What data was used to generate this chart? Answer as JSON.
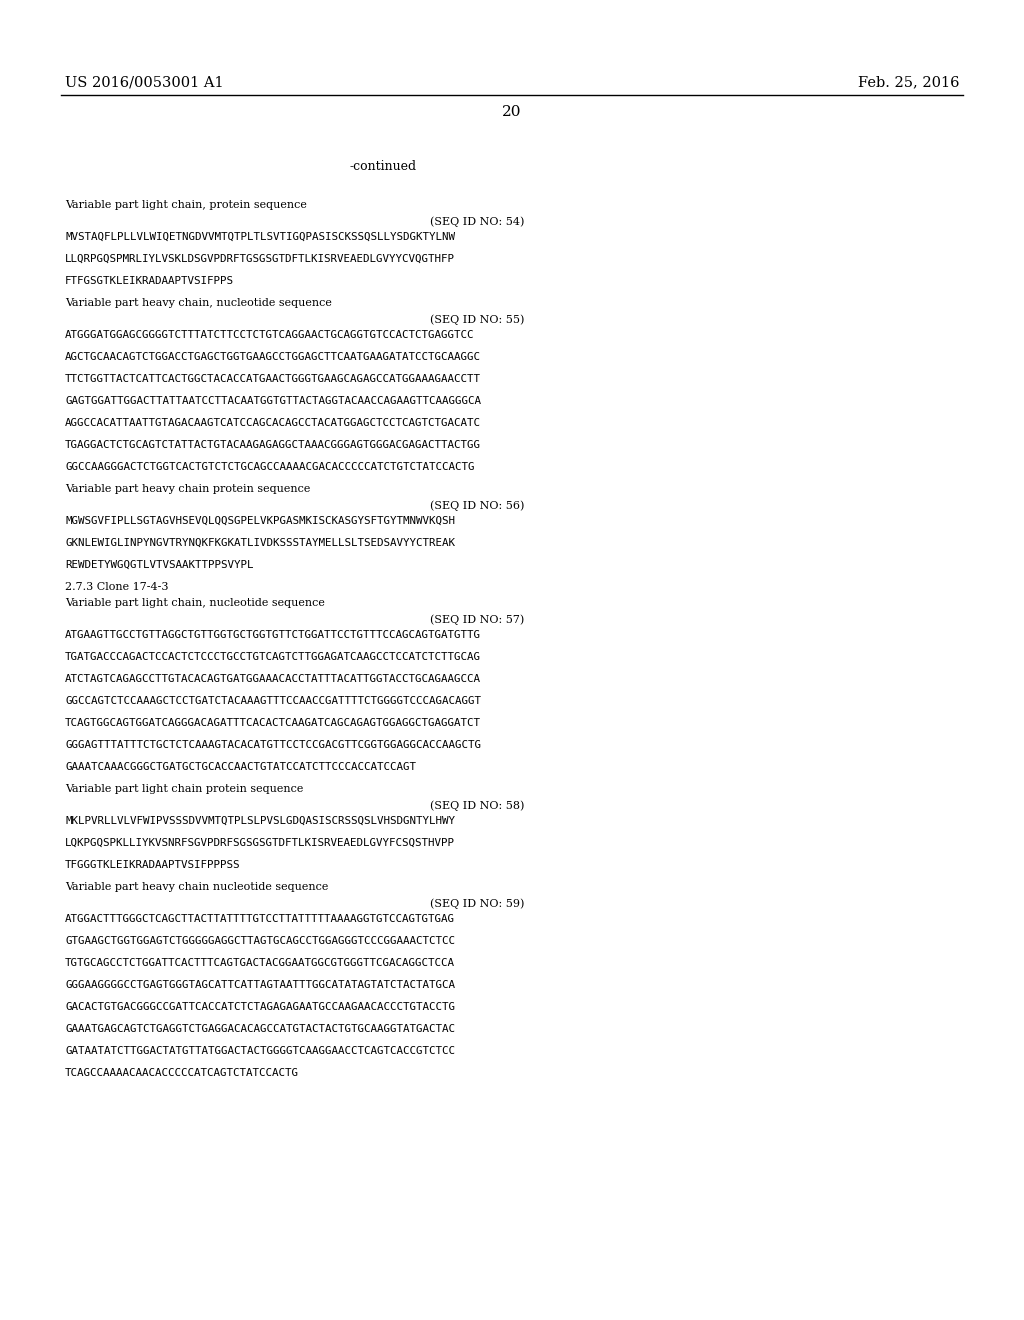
{
  "background_color": "#ffffff",
  "header_left": "US 2016/0053001 A1",
  "header_right": "Feb. 25, 2016",
  "page_number": "20",
  "continued": "-continued",
  "content_lines": [
    {
      "text": "Variable part light chain, protein sequence",
      "style": "normal"
    },
    {
      "text": "(SEQ ID NO: 54)",
      "style": "seqid"
    },
    {
      "text": "MVSTAQFLPLLVLWIQETNGDVVMTQTPLTLSVTIGQPASISCKSSQSLLYSDGKTYLNW",
      "style": "mono"
    },
    {
      "text": "",
      "style": "blank"
    },
    {
      "text": "LLQRPGQSPMRLIYLVSKLDSGVPDRFTGSGSGTDFTLKISRVEAEDLGVYYCVQGTHFP",
      "style": "mono"
    },
    {
      "text": "",
      "style": "blank"
    },
    {
      "text": "FTFGSGTKLЕIKRADAAPTVSIFPPS",
      "style": "mono"
    },
    {
      "text": "",
      "style": "blank"
    },
    {
      "text": "Variable part heavy chain, nucleotide sequence",
      "style": "normal"
    },
    {
      "text": "(SEQ ID NO: 55)",
      "style": "seqid"
    },
    {
      "text": "ATGGGATGGAGCGGGGTCTTTАТCTTCCTCTGTCAGGAACTGCAGGTGTCCACTCTGAGGTCC",
      "style": "mono"
    },
    {
      "text": "",
      "style": "blank"
    },
    {
      "text": "AGCTGCAACAGTCTGGACCTGAGCTGGTGAAGCCTGGAGCTTCAATGAAGATATCCTGCAAGGC",
      "style": "mono"
    },
    {
      "text": "",
      "style": "blank"
    },
    {
      "text": "TTCTGGTTACTCATTCACTGGCTACACCATGAACTGGGTGAAGCAGAGCCATGGAAAGAACCTT",
      "style": "mono"
    },
    {
      "text": "",
      "style": "blank"
    },
    {
      "text": "GAGTGGATTGGACTTATTAATCCTTACAATGGTGTTACTAGGTACAACCAGAAGTTCAAGGGCA",
      "style": "mono"
    },
    {
      "text": "",
      "style": "blank"
    },
    {
      "text": "AGGCCACATTAATTGTAGACAAGTCATCCAGCACAGCCTACATGGAGCTCCTCAGTCTGACATC",
      "style": "mono"
    },
    {
      "text": "",
      "style": "blank"
    },
    {
      "text": "TGAGGACTCTGCAGTCTATTACTGTACAAGAGAGGCTAAACGGGAGTGGGACGAGACTTACTGG",
      "style": "mono"
    },
    {
      "text": "",
      "style": "blank"
    },
    {
      "text": "GGCCAAGGGACTCTGGTCACTGTCTCTGCAGCCAAAACGACACCCCCATCTGTCTATCCACTG",
      "style": "mono"
    },
    {
      "text": "",
      "style": "blank"
    },
    {
      "text": "Variable part heavy chain protein sequence",
      "style": "normal"
    },
    {
      "text": "(SEQ ID NO: 56)",
      "style": "seqid"
    },
    {
      "text": "MGWSGVFIPLLSGTAGVHSEVQLQQSGPELVKPGASMKISCKASGYSFTGYTMNWVKQSH",
      "style": "mono"
    },
    {
      "text": "",
      "style": "blank"
    },
    {
      "text": "GKNLEWIGLINPYNGVTRYNQKFKGKATLIVDKSSSTAYMELLSLTSEDSAVYYCTREAK",
      "style": "mono"
    },
    {
      "text": "",
      "style": "blank"
    },
    {
      "text": "REWDETYWGQGTLVTVSAAKTTPPSVYPL",
      "style": "mono"
    },
    {
      "text": "",
      "style": "blank"
    },
    {
      "text": "2.7.3 Clone 17-4-3",
      "style": "normal"
    },
    {
      "text": "Variable part light chain, nucleotide sequence",
      "style": "normal"
    },
    {
      "text": "(SEQ ID NO: 57)",
      "style": "seqid"
    },
    {
      "text": "ATGAAGTTGCCTGTTAGGCTGTTGGTGCTGGTGTTCTGGATTCCTGTTTCCAGCAGTGATGTTG",
      "style": "mono"
    },
    {
      "text": "",
      "style": "blank"
    },
    {
      "text": "TGATGACCCAGACTCCACTCTCCCTGCCTGTCAGTCTTGGAGATCAAGCCTCCATCTCTTGCAG",
      "style": "mono"
    },
    {
      "text": "",
      "style": "blank"
    },
    {
      "text": "ATCTAGTCAGAGCCTTGTACACAGTGATGGAAACACCTATTTACATTGGTACCTGCAGAAGCCA",
      "style": "mono"
    },
    {
      "text": "",
      "style": "blank"
    },
    {
      "text": "GGCCAGTCTCCAAAGCTCCTGATCTACAAAGTTTCCAACCGATTTTCTGGGGTCCCAGACAGGT",
      "style": "mono"
    },
    {
      "text": "",
      "style": "blank"
    },
    {
      "text": "TCAGTGGCAGTGGATCAGGGACAGATTTCACACTCAAGATCAGCAGAGTGGAGGCTGAGGATCT",
      "style": "mono"
    },
    {
      "text": "",
      "style": "blank"
    },
    {
      "text": "GGGAGTTTАТТТCTGCTCTCAAAGTACACATGTTCCTCCGACGTTCGGTGGAGGCACCAAGCTG",
      "style": "mono"
    },
    {
      "text": "",
      "style": "blank"
    },
    {
      "text": "GAAATCAAACGGGCTGATGCTGCACCAACTGTATCCATCTTCCCACCATCCAGT",
      "style": "mono"
    },
    {
      "text": "",
      "style": "blank"
    },
    {
      "text": "Variable part light chain protein sequence",
      "style": "normal"
    },
    {
      "text": "(SEQ ID NO: 58)",
      "style": "seqid"
    },
    {
      "text": "MKLPVRLLVLVFWIPVSSSDVVMTQTPLSLPVSLGDQASISCRSSQSLVHSDGNTYLHWY",
      "style": "mono"
    },
    {
      "text": "",
      "style": "blank"
    },
    {
      "text": "LQKPGQSPKLLIYKVSNRFSGVPDRFSGSGSGTDFTLKISRVEAEDLGVYFCSQSTHVPP",
      "style": "mono"
    },
    {
      "text": "",
      "style": "blank"
    },
    {
      "text": "TFGGGTKLЕIKRADAAPTVSIFPPPSS",
      "style": "mono"
    },
    {
      "text": "",
      "style": "blank"
    },
    {
      "text": "Variable part heavy chain nucleotide sequence",
      "style": "normal"
    },
    {
      "text": "(SEQ ID NO: 59)",
      "style": "seqid"
    },
    {
      "text": "ATGGACTTTGGGCTCAGCTTACTTATTTTGTCCTTATTTTTAAAAGGTGTCCAGTGTGAG",
      "style": "mono"
    },
    {
      "text": "",
      "style": "blank"
    },
    {
      "text": "GTGAAGCTGGTGGAGTCTGGGGGAGGCTТAGTGCAGCCTGGAGGGTCCCGGAAACTCTCC",
      "style": "mono"
    },
    {
      "text": "",
      "style": "blank"
    },
    {
      "text": "TGTGCAGCCTCTGGATTCACTTTCAGTGACTACGGAATGGCGTGGGTTCGACAGGCTCCA",
      "style": "mono"
    },
    {
      "text": "",
      "style": "blank"
    },
    {
      "text": "GGGAAGGGGCCTGAGTGGGTAGCATTCATTAGTAATTTGGCATATAGTATCTACTATGCA",
      "style": "mono"
    },
    {
      "text": "",
      "style": "blank"
    },
    {
      "text": "GACACTGTGACGGGCCGATTCACCATCTCTAGAGAGAATGCCAAGAACACCCTGTACCTG",
      "style": "mono"
    },
    {
      "text": "",
      "style": "blank"
    },
    {
      "text": "GAAATGAGCAGTCTGAGGTCTGAGGACACAGCCATGTACTACTGTGCAAGGTATGACTAC",
      "style": "mono"
    },
    {
      "text": "",
      "style": "blank"
    },
    {
      "text": "GATAATATCTTGGACTATGTTATGGACTACTGGGGTCAAGGAACCTCAGTCACCGTCTCC",
      "style": "mono"
    },
    {
      "text": "",
      "style": "blank"
    },
    {
      "text": "TCAGCCAAAACAACACCCCCATCAGTCTATCCACTG",
      "style": "mono"
    }
  ]
}
